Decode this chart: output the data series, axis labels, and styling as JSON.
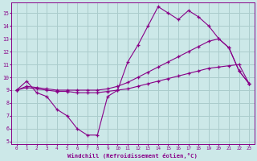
{
  "bg_color": "#cce8e8",
  "grid_color": "#aacccc",
  "line_color": "#880088",
  "marker": "+",
  "xlabel": "Windchill (Refroidissement éolien,°C)",
  "xlim": [
    -0.5,
    23.5
  ],
  "ylim": [
    4.8,
    15.8
  ],
  "yticks": [
    5,
    6,
    7,
    8,
    9,
    10,
    11,
    12,
    13,
    14,
    15
  ],
  "xticks": [
    0,
    1,
    2,
    3,
    4,
    5,
    6,
    7,
    8,
    9,
    10,
    11,
    12,
    13,
    14,
    15,
    16,
    17,
    18,
    19,
    20,
    21,
    22,
    23
  ],
  "series": [
    {
      "x": [
        0,
        1,
        2,
        3,
        4,
        5,
        6,
        7,
        8,
        9,
        10,
        11,
        12,
        13,
        14,
        15,
        16,
        17,
        18,
        19,
        20,
        21,
        22,
        23
      ],
      "y": [
        9.0,
        9.7,
        8.8,
        8.5,
        7.5,
        7.0,
        6.0,
        5.5,
        5.5,
        8.5,
        9.0,
        11.2,
        12.5,
        14.0,
        15.5,
        15.0,
        14.5,
        15.2,
        14.7,
        14.0,
        13.0,
        12.3,
        10.5,
        9.5
      ]
    },
    {
      "x": [
        0,
        1,
        2,
        3,
        4,
        5,
        6,
        7,
        8,
        9,
        10,
        11,
        12,
        13,
        14,
        15,
        16,
        17,
        18,
        19,
        20,
        21,
        22,
        23
      ],
      "y": [
        9.0,
        9.3,
        9.2,
        9.1,
        9.0,
        9.0,
        9.0,
        9.0,
        9.0,
        9.1,
        9.3,
        9.6,
        10.0,
        10.4,
        10.8,
        11.2,
        11.6,
        12.0,
        12.4,
        12.8,
        13.0,
        12.3,
        10.5,
        9.5
      ]
    },
    {
      "x": [
        0,
        1,
        2,
        3,
        4,
        5,
        6,
        7,
        8,
        9,
        10,
        11,
        12,
        13,
        14,
        15,
        16,
        17,
        18,
        19,
        20,
        21,
        22,
        23
      ],
      "y": [
        9.0,
        9.2,
        9.1,
        9.0,
        8.9,
        8.9,
        8.8,
        8.8,
        8.8,
        8.9,
        9.0,
        9.1,
        9.3,
        9.5,
        9.7,
        9.9,
        10.1,
        10.3,
        10.5,
        10.7,
        10.8,
        10.9,
        11.0,
        9.5
      ]
    }
  ]
}
